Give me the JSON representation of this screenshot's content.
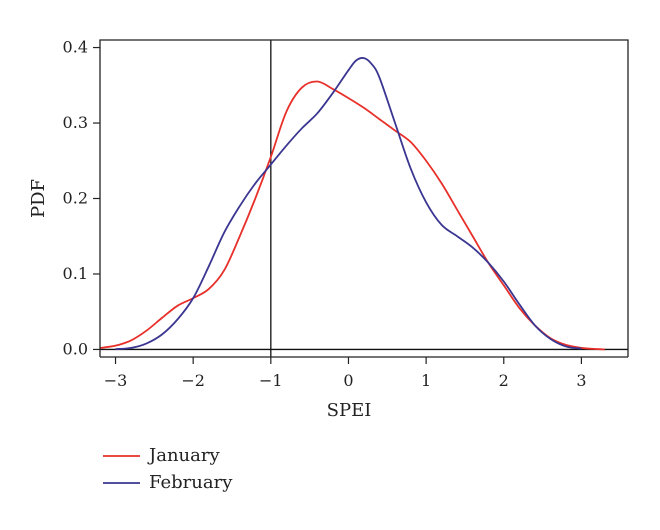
{
  "chart_data": {
    "type": "line",
    "title": "",
    "xlabel": "SPEI",
    "ylabel": "PDF",
    "xlim": [
      -3.2,
      3.6
    ],
    "ylim": [
      -0.01,
      0.41
    ],
    "xticks": [
      -3,
      -2,
      -1,
      0,
      1,
      2,
      3
    ],
    "xtick_labels": [
      "−3",
      "−2",
      "−1",
      "0",
      "1",
      "2",
      "3"
    ],
    "yticks": [
      0.0,
      0.1,
      0.2,
      0.3,
      0.4
    ],
    "ytick_labels": [
      "0.0",
      "0.1",
      "0.2",
      "0.3",
      "0.4"
    ],
    "reference_lines": {
      "vertical_x": -1,
      "horizontal_y": 0
    },
    "legend_position": "bottom-left, below plot",
    "series": [
      {
        "name": "January",
        "color": "#e8302a",
        "x": [
          -3.2,
          -3.0,
          -2.8,
          -2.6,
          -2.4,
          -2.2,
          -2.0,
          -1.8,
          -1.6,
          -1.4,
          -1.2,
          -1.0,
          -0.8,
          -0.6,
          -0.4,
          -0.2,
          0.0,
          0.2,
          0.4,
          0.6,
          0.8,
          1.0,
          1.2,
          1.4,
          1.6,
          1.8,
          2.0,
          2.2,
          2.4,
          2.6,
          2.8,
          3.0,
          3.2,
          3.3
        ],
        "y": [
          0.002,
          0.005,
          0.012,
          0.025,
          0.042,
          0.058,
          0.068,
          0.08,
          0.105,
          0.15,
          0.2,
          0.255,
          0.315,
          0.347,
          0.355,
          0.345,
          0.333,
          0.32,
          0.305,
          0.29,
          0.275,
          0.25,
          0.22,
          0.185,
          0.15,
          0.115,
          0.085,
          0.055,
          0.032,
          0.015,
          0.006,
          0.002,
          0.0005,
          0.0
        ]
      },
      {
        "name": "February",
        "color": "#3a3691",
        "x": [
          -3.0,
          -2.8,
          -2.6,
          -2.4,
          -2.2,
          -2.0,
          -1.8,
          -1.6,
          -1.4,
          -1.2,
          -1.0,
          -0.8,
          -0.6,
          -0.4,
          -0.2,
          0.0,
          0.1,
          0.2,
          0.3,
          0.4,
          0.6,
          0.8,
          1.0,
          1.2,
          1.4,
          1.6,
          1.8,
          2.0,
          2.2,
          2.4,
          2.6,
          2.8,
          3.0
        ],
        "y": [
          0.0005,
          0.002,
          0.008,
          0.02,
          0.04,
          0.068,
          0.11,
          0.155,
          0.19,
          0.22,
          0.245,
          0.27,
          0.293,
          0.313,
          0.34,
          0.37,
          0.383,
          0.386,
          0.378,
          0.36,
          0.3,
          0.24,
          0.195,
          0.165,
          0.15,
          0.135,
          0.115,
          0.09,
          0.06,
          0.032,
          0.014,
          0.004,
          0.001
        ]
      }
    ]
  }
}
